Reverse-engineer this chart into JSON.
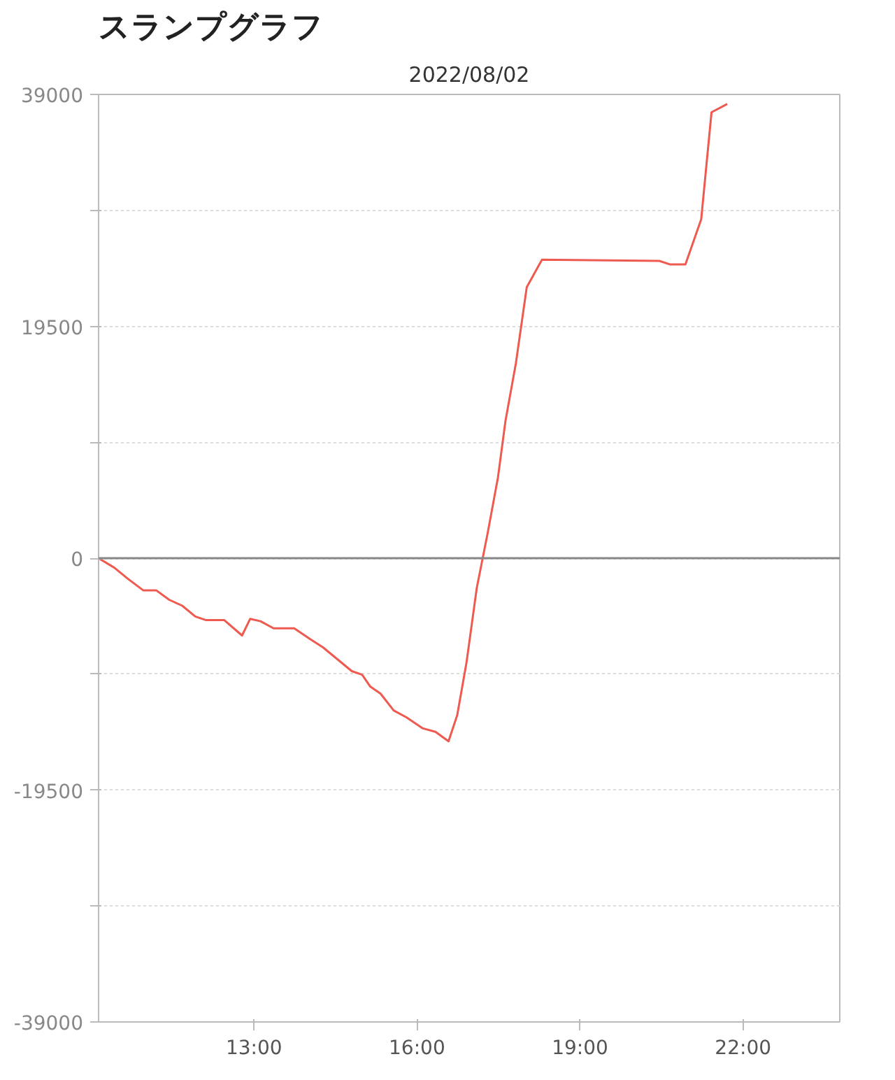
{
  "chart_data": {
    "type": "line",
    "title": "スランプグラフ",
    "subtitle": "2022/08/02",
    "x": [
      10.14,
      10.43,
      10.67,
      10.96,
      11.2,
      11.44,
      11.68,
      11.92,
      12.11,
      12.45,
      12.78,
      12.93,
      13.12,
      13.36,
      13.74,
      14.03,
      14.27,
      14.8,
      14.99,
      15.14,
      15.33,
      15.57,
      15.81,
      16.1,
      16.34,
      16.58,
      16.74,
      16.91,
      17.1,
      17.3,
      17.49,
      17.63,
      17.82,
      18.02,
      18.3,
      20.46,
      20.66,
      20.94,
      21.23,
      21.42,
      21.71
    ],
    "series": [
      {
        "color": "#ee5a4f",
        "values": [
          0,
          -800,
          -1700,
          -2700,
          -2700,
          -3500,
          -4000,
          -4900,
          -5200,
          -5200,
          -6500,
          -5100,
          -5300,
          -5900,
          -5900,
          -6800,
          -7500,
          -9500,
          -9800,
          -10800,
          -11400,
          -12800,
          -13400,
          -14300,
          -14600,
          -15400,
          -13200,
          -8800,
          -2500,
          2100,
          6800,
          11600,
          16400,
          22800,
          25100,
          25000,
          24700,
          24700,
          28500,
          37500,
          38200
        ]
      }
    ],
    "xlim": [
      10.14,
      23.78
    ],
    "ylim": [
      -39000,
      39000
    ],
    "xticks": [
      {
        "value": 13,
        "label": "13:00"
      },
      {
        "value": 16,
        "label": "16:00"
      },
      {
        "value": 19,
        "label": "19:00"
      },
      {
        "value": 22,
        "label": "22:00"
      }
    ],
    "yticks": [
      -39000,
      {
        "value": -29250,
        "label": null
      },
      -19500,
      {
        "value": -9750,
        "label": null
      },
      0,
      {
        "value": 9750,
        "label": null
      },
      19500,
      {
        "value": 29250,
        "label": null
      },
      39000
    ],
    "grid": "y",
    "ref_lines": [
      {
        "axis": "y",
        "value": 0,
        "color": "#888888"
      }
    ]
  }
}
